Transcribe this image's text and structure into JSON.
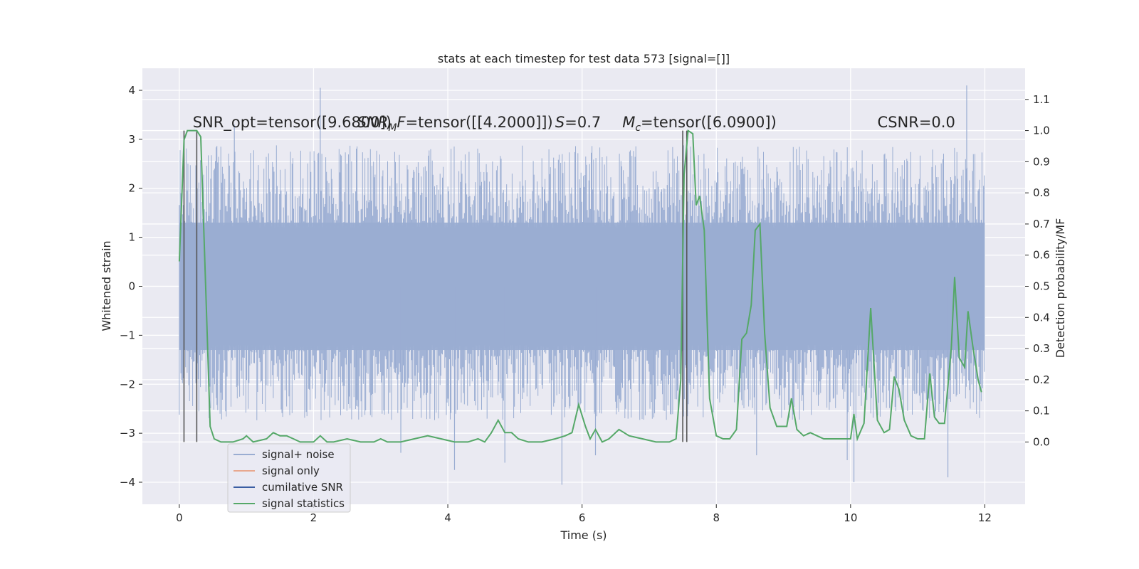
{
  "chart_data": {
    "type": "line",
    "title": "stats at each timestep for test data 573 [signal=[]]",
    "xlabel": "Time (s)",
    "ylabel_left": "Whitened strain",
    "ylabel_right": "Detection probability/MF",
    "xlim": [
      -0.55,
      12.6
    ],
    "ylim_left": [
      -4.45,
      4.45
    ],
    "ylim_right": [
      -0.2,
      1.2
    ],
    "x_ticks": [
      0,
      2,
      4,
      6,
      8,
      10,
      12
    ],
    "x_tick_labels": [
      "0",
      "2",
      "4",
      "6",
      "8",
      "10",
      "12"
    ],
    "y_left_ticks": [
      4,
      3,
      2,
      1,
      0,
      -1,
      -2,
      -3,
      -4
    ],
    "y_left_tick_labels": [
      "4",
      "3",
      "2",
      "1",
      "0",
      "−1",
      "−2",
      "−3",
      "−4"
    ],
    "y_right_ticks": [
      1.1,
      1.0,
      0.9,
      0.8,
      0.7,
      0.6,
      0.5,
      0.4,
      0.3,
      0.2,
      0.1,
      0.0
    ],
    "y_right_tick_labels": [
      "1.1",
      "1.0",
      "0.9",
      "0.8",
      "0.7",
      "0.6",
      "0.5",
      "0.4",
      "0.3",
      "0.2",
      "0.1",
      "0.0"
    ],
    "grid": true,
    "legend_position": "lower-left",
    "annotations": [
      {
        "text": "SNR_opt=tensor([9.6800])",
        "x": 0.2,
        "y": 1.01
      },
      {
        "text": "SNR_MF=tensor([[4.2000]])",
        "x": 2.65,
        "y": 1.01
      },
      {
        "text": "S=0.7",
        "x": 5.6,
        "y": 1.01
      },
      {
        "text": "M_c=tensor([6.0900])",
        "x": 6.6,
        "y": 1.01
      },
      {
        "text": "CSNR=0.0",
        "x": 10.4,
        "y": 1.01
      }
    ],
    "vertical_markers": [
      0.07,
      0.26,
      7.5,
      7.56
    ],
    "series": [
      {
        "name": "signal+ noise",
        "axis": "left",
        "color": "#9aadd2",
        "noise_band": {
          "t_start": 0.0,
          "t_end": 12.0,
          "typical_max": 2.8,
          "typical_min": -2.6,
          "dense_max": 1.3,
          "dense_min": -1.3
        },
        "spikes": [
          {
            "t": 2.1,
            "v": 4.05
          },
          {
            "t": 11.73,
            "v": 4.1
          },
          {
            "t": 0.82,
            "v": 3.3
          },
          {
            "t": 5.7,
            "v": -4.05
          },
          {
            "t": 10.05,
            "v": -4.0
          },
          {
            "t": 11.45,
            "v": -3.9
          },
          {
            "t": 4.1,
            "v": -3.75
          },
          {
            "t": 8.6,
            "v": -3.45
          },
          {
            "t": 9.95,
            "v": -3.55
          },
          {
            "t": 3.3,
            "v": -3.4
          },
          {
            "t": 4.85,
            "v": -3.6
          },
          {
            "t": 6.2,
            "v": -3.45
          }
        ]
      },
      {
        "name": "signal only",
        "axis": "left",
        "color": "#e8a88f",
        "x": [],
        "y": []
      },
      {
        "name": "cumilative SNR",
        "axis": "left",
        "color": "#3b5ea3",
        "x": [],
        "y": []
      },
      {
        "name": "signal statistics",
        "axis": "right",
        "color": "#55a868",
        "x": [
          0.0,
          0.07,
          0.12,
          0.2,
          0.26,
          0.32,
          0.4,
          0.46,
          0.52,
          0.62,
          0.8,
          0.95,
          1.0,
          1.1,
          1.3,
          1.4,
          1.5,
          1.6,
          1.7,
          1.8,
          2.0,
          2.1,
          2.2,
          2.3,
          2.5,
          2.7,
          2.9,
          3.0,
          3.1,
          3.3,
          3.5,
          3.7,
          3.9,
          4.1,
          4.3,
          4.45,
          4.55,
          4.65,
          4.75,
          4.85,
          4.95,
          5.05,
          5.2,
          5.4,
          5.6,
          5.75,
          5.85,
          5.95,
          6.05,
          6.12,
          6.2,
          6.3,
          6.4,
          6.55,
          6.7,
          6.9,
          7.1,
          7.3,
          7.4,
          7.47,
          7.52,
          7.58,
          7.65,
          7.7,
          7.75,
          7.82,
          7.9,
          8.0,
          8.1,
          8.2,
          8.3,
          8.38,
          8.45,
          8.52,
          8.58,
          8.65,
          8.72,
          8.8,
          8.9,
          8.98,
          9.05,
          9.12,
          9.2,
          9.3,
          9.4,
          9.5,
          9.6,
          9.8,
          10.0,
          10.05,
          10.1,
          10.2,
          10.3,
          10.4,
          10.5,
          10.58,
          10.65,
          10.72,
          10.8,
          10.9,
          11.0,
          11.1,
          11.18,
          11.25,
          11.32,
          11.4,
          11.5,
          11.55,
          11.62,
          11.7,
          11.75,
          11.82,
          11.9,
          11.95
        ],
        "y": [
          0.58,
          0.97,
          1.0,
          1.0,
          1.0,
          0.98,
          0.45,
          0.05,
          0.01,
          0.0,
          0.0,
          0.01,
          0.02,
          0.0,
          0.01,
          0.03,
          0.02,
          0.02,
          0.01,
          0.0,
          0.0,
          0.02,
          0.0,
          0.0,
          0.01,
          0.0,
          0.0,
          0.01,
          0.0,
          0.0,
          0.01,
          0.02,
          0.01,
          0.0,
          0.0,
          0.01,
          0.0,
          0.03,
          0.07,
          0.03,
          0.03,
          0.01,
          0.0,
          0.0,
          0.01,
          0.02,
          0.03,
          0.12,
          0.05,
          0.01,
          0.04,
          0.0,
          0.01,
          0.04,
          0.02,
          0.01,
          0.0,
          0.0,
          0.01,
          0.2,
          0.86,
          1.0,
          0.99,
          0.76,
          0.79,
          0.68,
          0.14,
          0.02,
          0.01,
          0.01,
          0.04,
          0.33,
          0.35,
          0.44,
          0.68,
          0.7,
          0.35,
          0.11,
          0.05,
          0.05,
          0.05,
          0.14,
          0.04,
          0.02,
          0.03,
          0.02,
          0.01,
          0.01,
          0.01,
          0.09,
          0.01,
          0.06,
          0.43,
          0.07,
          0.03,
          0.04,
          0.21,
          0.17,
          0.07,
          0.02,
          0.01,
          0.01,
          0.22,
          0.08,
          0.06,
          0.06,
          0.3,
          0.53,
          0.27,
          0.24,
          0.42,
          0.31,
          0.2,
          0.16
        ]
      }
    ]
  }
}
